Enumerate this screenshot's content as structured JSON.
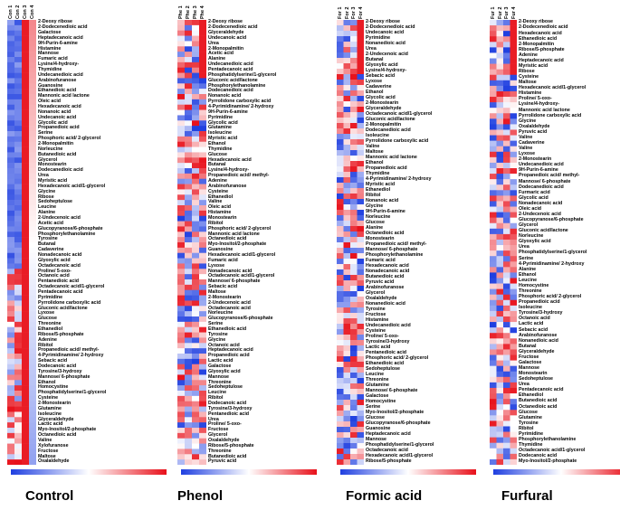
{
  "panels": [
    {
      "title": "Control",
      "columns": [
        "Con 1",
        "Con 2",
        "Con 3",
        "Con 4"
      ],
      "rows": [
        "2-Deoxy ribose",
        "2-Dodecenedioic acid",
        "Galactose",
        "Heptadecanoic acid",
        "9H-Purin-6-amine",
        "Histamine",
        "Mannose",
        "Fumaric acid",
        "Lysine/4-hydroxy-",
        "Thymidine",
        "Undecanedioic acid",
        "Arabinofuranose",
        "Guanosine",
        "Ethanedioic acid",
        "Mannonic acid lactone",
        "Oleic acid",
        "Hexadecanoic acid",
        "Nonanoic acid",
        "Undecanoic acid",
        "Glycolic acid",
        "Propanedioic acid",
        "Serine",
        "Phosphoric acid/ 2-glycerol",
        "2-Monopalmitin",
        "Norleucine",
        "Butanedioic acid",
        "Glycerol",
        "Monostearin",
        "Dodecanedioic acid",
        "Urea",
        "Myristic acid",
        "Hexadecanoic acid/1-glycerol",
        "Glycine",
        "Ribose",
        "Sedoheptulose",
        "Leucine",
        "Alanine",
        "2-Undecenoic acid",
        "Acetic acid",
        "Glucopyranose/6-phosphate",
        "Phosphorylethanolamine",
        "Tyrosine",
        "Butanal",
        "Cadaverine",
        "Nonadecanoic acid",
        "Glyoxylic acid",
        "Octadecanoic acid",
        "Proline/ 5-oxo-",
        "Octanoic acid",
        "Pentanedioic acid",
        "Octadecanoic acid/1-glycerol",
        "Pentadecanoic acid",
        "Pyrimidine",
        "Pyrrolidone carboxylic acid",
        "Gluconic acid/lactone",
        "Lyxose",
        "Glucose",
        "Threonine",
        "Ethanediol",
        "Ribose/5-phosphate",
        "Adenine",
        "Ribitol",
        "Propanedioic acid/ methyl-",
        "4-Pyrimidinamine/ 2-hydroxy",
        "Sebacic acid",
        "Dodecanoic acid",
        "Tyrosine/3-hydroxy",
        "Mannose/ 6-phosphate",
        "Ethanol",
        "Homocystine",
        "Phosphatidylserine/1-glycerol",
        "Cysteine",
        "2-Monostearin",
        "Glutamine",
        "Isoleucine",
        "Glyceraldehyde",
        "Lactic acid",
        "Myo-Inositol/2-phosphate",
        "Octanedioic acid",
        "Valine",
        "Xylofuranose",
        "Fructose",
        "Maltose",
        "Oxalaldehyde"
      ]
    },
    {
      "title": "Phenol",
      "columns": [
        "Phe 1",
        "Phe 2",
        "Phe 3",
        "Phe 4"
      ],
      "rows": [
        "2-Deoxy ribose",
        "2-Dodecenedioic acid",
        "Glyceraldehyde",
        "Undecanoic acid",
        "Urea",
        "2-Monopalmitin",
        "Acetic acid",
        "Alanine",
        "Undecanedioic acid",
        "Pentadecanoic acid",
        "Phosphatidylserine/1-glycerol",
        "Gluconic acid/lactone",
        "Phosphorylethanolamine",
        "Dodecanedioic acid",
        "Nonanoic acid",
        "Pyrrolidone carboxylic acid",
        "4-Pyrimidinamine/ 2-hydroxy",
        "9H-Purin-6-amine",
        "Pyrimidine",
        "Glycolic acid",
        "Glutamine",
        "Isoleucine",
        "Myristic acid",
        "Ethanol",
        "Thymidine",
        "Glucose",
        "Hexadecanoic acid",
        "Butanal",
        "Lysine/4-hydroxy-",
        "Propanedioic acid/ methyl-",
        "Adenine",
        "Arabinofuranose",
        "Cysteine",
        "Ethanediol",
        "Valine",
        "Oleic acid",
        "Histamine",
        "Monostearin",
        "Ribitol",
        "Phosphoric acid/ 2-glycerol",
        "Mannonic acid lactone",
        "Octanedioic acid",
        "Myo-Inositol/2-phosphate",
        "Guanosine",
        "Hexadecanoic acid/1-glycerol",
        "Fumaric acid",
        "Lyxose",
        "Nonadecanoic acid",
        "Octadecanoic acid/1-glycerol",
        "Mannose/ 6-phosphate",
        "Sebacic acid",
        "Maltose",
        "2-Monostearin",
        "2-Undecenoic acid",
        "Octadecanoic acid",
        "Norleucine",
        "Glucopyranose/6-phosphate",
        "Serine",
        "Ethanedioic acid",
        "Tyrosine",
        "Glycine",
        "Octanoic acid",
        "Heptadecanoic acid",
        "Propanedioic acid",
        "Lactic acid",
        "Galactose",
        "Glyoxylic acid",
        "Mannose",
        "Threonine",
        "Sedoheptulose",
        "Leucine",
        "Ribitol",
        "Dodecanoic acid",
        "Tyrosine/3-hydroxy",
        "Pentanedioic acid",
        "Urea",
        "Proline/ 5-oxo-",
        "Fructose",
        "Glycerol",
        "Oxalaldehyde",
        "Ribose/5-phosphate",
        "Threonine",
        "Butanedioic acid",
        "Pyruvic acid"
      ]
    },
    {
      "title": "Formic acid",
      "columns": [
        "For 1",
        "For 2",
        "For 3",
        "For 4"
      ],
      "rows": [
        "2-Deoxy ribose",
        "2-Dodecenedioic acid",
        "Undecanoic acid",
        "Pyrimidine",
        "Nonanedioic acid",
        "Urea",
        "2-Undecenoic acid",
        "Butanal",
        "Glyoxylic acid",
        "Lysine/4-hydroxy-",
        "Sebacic acid",
        "Lyxose",
        "Cadaverine",
        "Ethanol",
        "Glycolic acid",
        "2-Monostearin",
        "Glyceraldehyde",
        "Octadecanoic acid/1-glycerol",
        "Gluconic acid/lactone",
        "2-Monopalmitin",
        "Dodecanedioic acid",
        "Isoleucine",
        "Pyrrolidone carboxylic acid",
        "Valine",
        "Maltose",
        "Mannonic acid lactone",
        "Ethanol",
        "Propanedioic acid",
        "Thymidine",
        "4-Pyrimidinamine/ 2-hydroxy",
        "Myristic acid",
        "Ethanediol",
        "Ribitol",
        "Nonanoic acid",
        "Glycine",
        "9H-Purin-6-amine",
        "Norleucine",
        "Glucose",
        "Alanine",
        "Octanedioic acid",
        "Monostearin",
        "Propanedioic acid/ methyl-",
        "Mannose/ 6-phosphate",
        "Phosphorylethanolamine",
        "Fumaric acid",
        "Hexadecanoic acid",
        "Nonadecanoic acid",
        "Butanedioic acid",
        "Pyruvic acid",
        "Arabinofuranose",
        "Glycerol",
        "Oxalaldehyde",
        "Nonanedioic acid",
        "Tyrosine",
        "Fructose",
        "Histamine",
        "Undecanedioic acid",
        "Cysteine",
        "Proline/ 5-oxo-",
        "Tyrosine/3-hydroxy",
        "Lactic acid",
        "Pentanedioic acid",
        "Phosphoric acid/ 2-glycerol",
        "Ethanedioic acid",
        "Sedoheptulose",
        "Leucine",
        "Threonine",
        "Glutamine",
        "Mannose/ 6-phosphate",
        "Galactose",
        "Homocystine",
        "Serine",
        "Myo-Inositol/2-phosphate",
        "Glucose",
        "Glucopyranose/6-phosphate",
        "Guanosine",
        "Heptadecanoic acid",
        "Mannose",
        "Phosphatidylserine/1-glycerol",
        "Octadecanoic acid",
        "Hexadecanoic acid/1-glycerol",
        "Ribose/5-phosphate"
      ]
    },
    {
      "title": "Furfural",
      "columns": [
        "Fur 1",
        "Fur 2",
        "Fur 3",
        "Fur 4"
      ],
      "rows": [
        "2-Deoxy ribose",
        "2-Dodecenedioic acid",
        "Hexadecanoic acid",
        "Ethanedioic acid",
        "2-Monopalmitin",
        "Ribose/5-phosphate",
        "Adenine",
        "Heptadecanoic acid",
        "Myristic acid",
        "Ribose",
        "Cysteine",
        "Maltose",
        "Hexadecanoic acid/1-glycerol",
        "Histamine",
        "Proline/ 5-oxo-",
        "Lysine/4-hydroxy-",
        "Mannonic acid lactone",
        "Pyrrolidone carboxylic acid",
        "Glycine",
        "Oxalaldehyde",
        "Pyruvic acid",
        "Valine",
        "Cadaverine",
        "Valine",
        "Lyxose",
        "2-Monostearin",
        "Undecanedioic acid",
        "9H-Purin-6-amine",
        "Propanedioic acid/ methyl-",
        "Mannose/ 6-phosphate",
        "Dodecanedioic acid",
        "Furmaric acid",
        "Glycolic acid",
        "Nonadecanoic acid",
        "Oleic acid",
        "2-Undecenoic acid",
        "Glucopyranose/6-phosphate",
        "Glycerol",
        "Gluconic acid/lactone",
        "Norleucine",
        "Glyoxylic acid",
        "Urea",
        "Phosphatidylserine/1-glycerol",
        "Serine",
        "4-Pyrimidinamine/ 2-hydroxy",
        "Alanine",
        "Ethanol",
        "Leucine",
        "Homocystine",
        "Threonine",
        "Phosphoric acid/ 2-glycerol",
        "Propanedioic acid",
        "Isoleucine",
        "Tyrosine/3-hydroxy",
        "Octanoic acid",
        "Lactic acid",
        "Sebacic acid",
        "Arabinofuranose",
        "Nonanedioic acid",
        "Butanal",
        "Glyceraldehyde",
        "Fructose",
        "Galactose",
        "Mannose",
        "Monostearin",
        "Sedoheptulose",
        "Urea",
        "Pentadecanoic acid",
        "Ethanediol",
        "Butanedioic acid",
        "Octanedioic acid",
        "Glucose",
        "Glutamine",
        "Tyrosine",
        "Ribitol",
        "Pyrimidine",
        "Phosphorylethanolamine",
        "Thymidine",
        "Octadecanoic acid/1-glycerol",
        "Dodecanoic acid",
        "Myo-Inositol/2-phosphate"
      ]
    }
  ],
  "colors": {
    "low": "#1f3fe0",
    "mid": "#ffffff",
    "high": "#e8101a"
  }
}
